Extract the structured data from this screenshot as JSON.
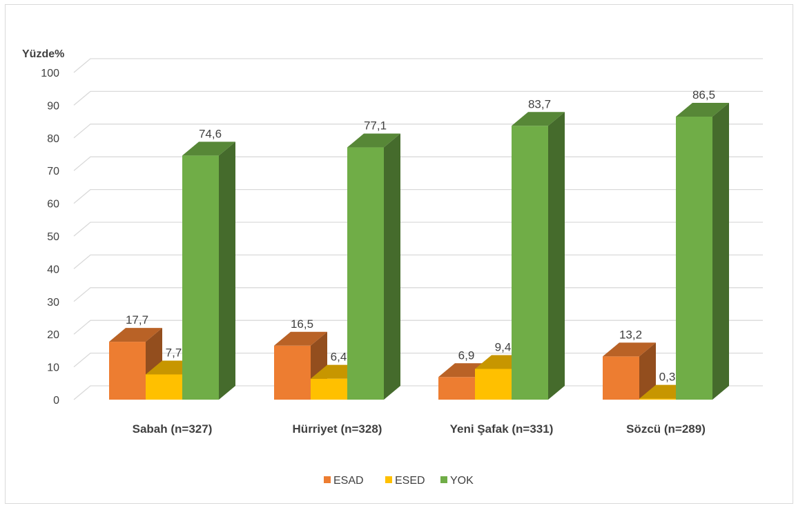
{
  "chart_data": {
    "type": "bar",
    "ylabel": "Yüzde%",
    "ylim": [
      0,
      100
    ],
    "yticks": [
      0,
      10,
      20,
      30,
      40,
      50,
      60,
      70,
      80,
      90,
      100
    ],
    "categories": [
      "Sabah (n=327)",
      "Hürriyet (n=328)",
      "Yeni Şafak (n=331)",
      "Sözcü (n=289)"
    ],
    "series": [
      {
        "name": "ESAD",
        "color": "#ed7d31",
        "values": [
          17.7,
          16.5,
          6.9,
          13.2
        ],
        "labels": [
          "17,7",
          "16,5",
          "6,9",
          "13,2"
        ]
      },
      {
        "name": "ESED",
        "color": "#ffc000",
        "values": [
          7.7,
          6.4,
          9.4,
          0.3
        ],
        "labels": [
          "7,7",
          "6,4",
          "9,4",
          "0,3"
        ]
      },
      {
        "name": "YOK",
        "color": "#70ad47",
        "values": [
          74.6,
          77.1,
          83.7,
          86.5
        ],
        "labels": [
          "74,6",
          "77,1",
          "83,7",
          "86,5"
        ]
      }
    ],
    "grid": true,
    "legend_position": "bottom",
    "style": "3d-clustered-column"
  }
}
